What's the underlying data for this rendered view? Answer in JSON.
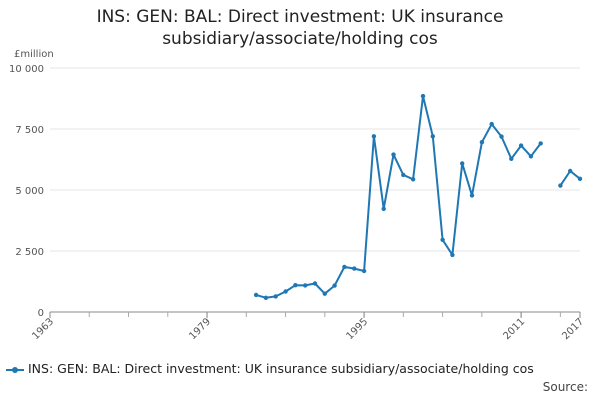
{
  "chart_data": {
    "type": "line",
    "title_lines": [
      "INS: GEN: BAL: Direct investment: UK insurance",
      "subsidiary/associate/holding cos"
    ],
    "ylabel": "£million",
    "ylim": [
      0,
      10000
    ],
    "yticks": [
      {
        "value": 0,
        "label": "0"
      },
      {
        "value": 2500,
        "label": "2 500"
      },
      {
        "value": 5000,
        "label": "5 000"
      },
      {
        "value": 7500,
        "label": "7 500"
      },
      {
        "value": 10000,
        "label": "10 000"
      }
    ],
    "xlim": [
      1963,
      2017
    ],
    "xticks": [
      {
        "value": 1963,
        "label": "1963"
      },
      {
        "value": 1979,
        "label": "1979"
      },
      {
        "value": 1995,
        "label": "1995"
      },
      {
        "value": 2011,
        "label": "2011"
      },
      {
        "value": 2017,
        "label": "2017"
      }
    ],
    "grid": true,
    "legend_position": "bottom",
    "series": [
      {
        "name": "INS: GEN: BAL: Direct investment: UK insurance subsidiary/associate/holding cos",
        "color": "#1f77b4",
        "segments": [
          [
            [
              1984,
              700
            ],
            [
              1985,
              580
            ],
            [
              1986,
              640
            ],
            [
              1987,
              840
            ],
            [
              1988,
              1100
            ],
            [
              1989,
              1090
            ],
            [
              1990,
              1170
            ],
            [
              1991,
              750
            ],
            [
              1992,
              1080
            ],
            [
              1993,
              1850
            ],
            [
              1994,
              1780
            ],
            [
              1995,
              1680
            ],
            [
              1996,
              7200
            ],
            [
              1997,
              4230
            ],
            [
              1998,
              6450
            ],
            [
              1999,
              5620
            ],
            [
              2000,
              5440
            ],
            [
              2001,
              8850
            ],
            [
              2002,
              7200
            ],
            [
              2003,
              2960
            ],
            [
              2004,
              2340
            ],
            [
              2005,
              6090
            ],
            [
              2006,
              4780
            ],
            [
              2007,
              6960
            ],
            [
              2008,
              7700
            ],
            [
              2009,
              7190
            ],
            [
              2010,
              6280
            ],
            [
              2011,
              6820
            ],
            [
              2012,
              6380
            ],
            [
              2013,
              6910
            ]
          ],
          [
            [
              2015,
              5180
            ],
            [
              2016,
              5780
            ],
            [
              2017,
              5460
            ]
          ]
        ]
      }
    ]
  },
  "footer": {
    "legend_label": "INS: GEN: BAL: Direct investment: UK insurance subsidiary/associate/holding cos",
    "source_label": "Source:"
  }
}
